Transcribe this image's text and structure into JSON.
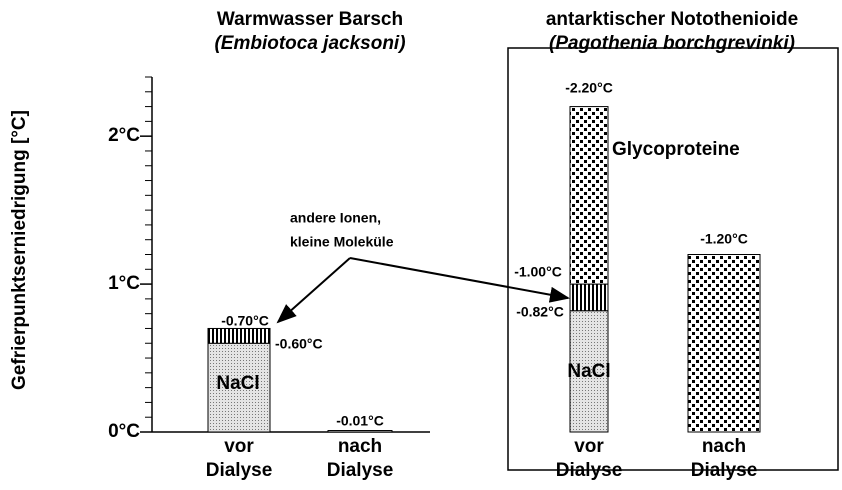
{
  "ylabel": "Gefrierpunktserniedrigung [°C]",
  "chart_data": [
    {
      "type": "bar",
      "stacked": true,
      "title": [
        "Warmwasser Barsch",
        "(Embiotoca jacksoni)"
      ],
      "categories": [
        [
          "vor",
          "Dialyse"
        ],
        [
          "nach",
          "Dialyse"
        ]
      ],
      "series": [
        {
          "name": "NaCl",
          "pattern": "fine-dots",
          "values": [
            0.6,
            0.01
          ]
        },
        {
          "name": [
            "andere Ionen,",
            "kleine Moleküle"
          ],
          "pattern": "stripes",
          "values": [
            0.1,
            null
          ]
        }
      ],
      "annotations": [
        "-0.70°C",
        "-0.60°C",
        "-0.01°C"
      ],
      "ylim": [
        0,
        2.4
      ],
      "yticks": [
        {
          "value": 0,
          "label": "0°C"
        },
        {
          "value": 1,
          "label": "1°C"
        },
        {
          "value": 2,
          "label": "2°C"
        }
      ],
      "yminorticks": [
        0.1,
        0.2,
        0.3,
        0.4,
        0.5,
        0.6,
        0.7,
        0.8,
        0.9,
        1.1,
        1.2,
        1.3,
        1.4,
        1.5,
        1.6,
        1.7,
        1.8,
        1.9,
        2.1,
        2.2,
        2.3,
        2.4
      ]
    },
    {
      "type": "bar",
      "stacked": true,
      "title": [
        "antarktischer Notothenioide",
        "(Pagothenia borchgrevinki)"
      ],
      "categories": [
        [
          "vor",
          "Dialyse"
        ],
        [
          "nach",
          "Dialyse"
        ]
      ],
      "series": [
        {
          "name": "NaCl",
          "pattern": "fine-dots",
          "values": [
            0.82,
            null
          ]
        },
        {
          "pattern": "stripes",
          "values": [
            0.18,
            null
          ]
        },
        {
          "name": "Glycoproteine",
          "pattern": "big-dots",
          "values": [
            1.2,
            1.2
          ]
        }
      ],
      "annotations": [
        "-2.20°C",
        "-1.00°C",
        "-0.82°C",
        "-1.20°C"
      ],
      "ylim": [
        0,
        2.4
      ]
    }
  ]
}
